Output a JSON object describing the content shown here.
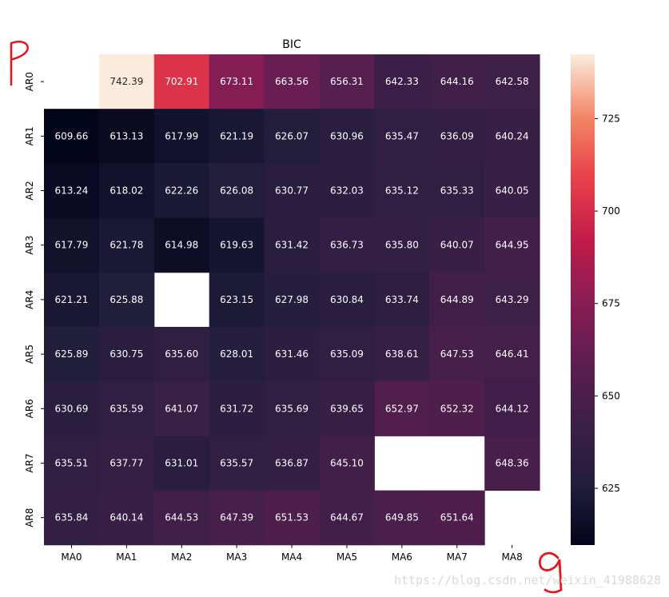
{
  "chart_data": {
    "type": "heatmap",
    "title": "BIC",
    "rows": [
      "AR0",
      "AR1",
      "AR2",
      "AR3",
      "AR4",
      "AR5",
      "AR6",
      "AR7",
      "AR8"
    ],
    "columns": [
      "MA0",
      "MA1",
      "MA2",
      "MA3",
      "MA4",
      "MA5",
      "MA6",
      "MA7",
      "MA8"
    ],
    "values": [
      [
        null,
        742.39,
        702.91,
        673.11,
        663.56,
        656.31,
        642.33,
        644.16,
        642.58
      ],
      [
        609.66,
        613.13,
        617.99,
        621.19,
        626.07,
        630.96,
        635.47,
        636.09,
        640.24
      ],
      [
        613.24,
        618.02,
        622.26,
        626.08,
        630.77,
        632.03,
        635.12,
        635.33,
        640.05
      ],
      [
        617.79,
        621.78,
        614.98,
        619.63,
        631.42,
        636.73,
        635.8,
        640.07,
        644.95
      ],
      [
        621.21,
        625.88,
        null,
        623.15,
        627.98,
        630.84,
        633.74,
        644.89,
        643.29
      ],
      [
        625.89,
        630.75,
        635.6,
        628.01,
        631.46,
        635.09,
        638.61,
        647.53,
        646.41
      ],
      [
        630.69,
        635.59,
        641.07,
        631.72,
        635.69,
        639.65,
        652.97,
        652.32,
        644.12
      ],
      [
        635.51,
        637.77,
        631.01,
        635.57,
        636.87,
        645.1,
        null,
        null,
        648.36
      ],
      [
        635.84,
        640.14,
        644.53,
        647.39,
        651.53,
        644.67,
        649.85,
        651.64,
        null
      ]
    ],
    "value_format": "%.2f",
    "colorbar": {
      "range": [
        609.66,
        742.39
      ],
      "ticks": [
        625,
        650,
        675,
        700,
        725
      ]
    },
    "colormap": "rocket",
    "legend_placement": "right"
  },
  "watermark": "https://blog.csdn.net/weixin_41988628",
  "annotations": {
    "left_mark": "p",
    "bottom_mark": "q",
    "ink_color": "#e8141b"
  }
}
